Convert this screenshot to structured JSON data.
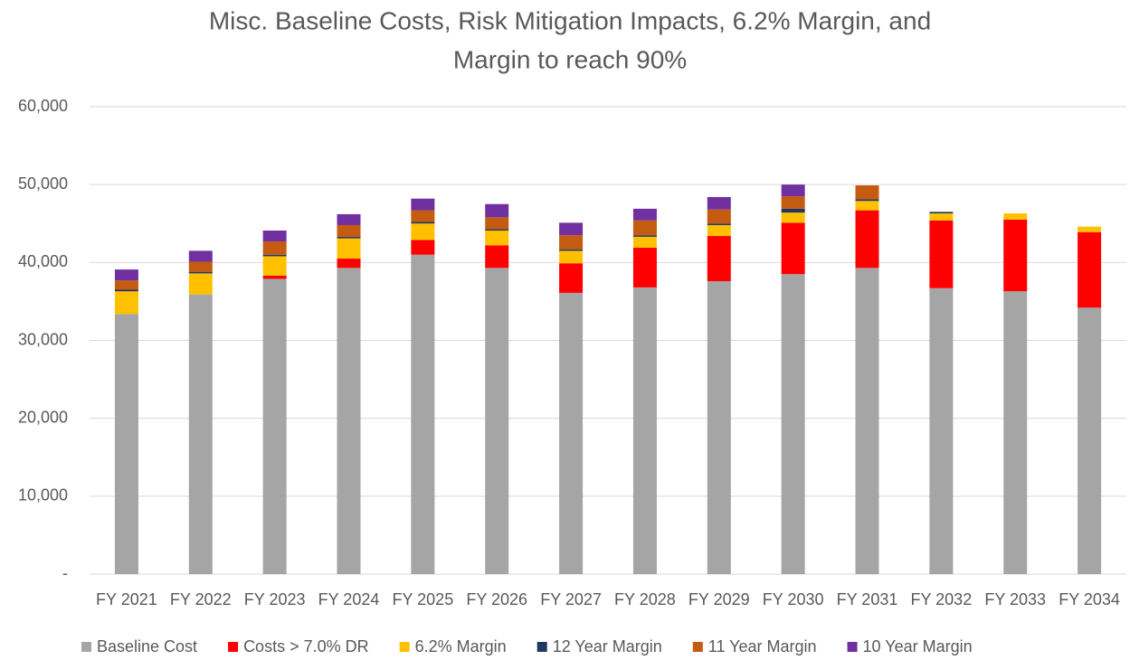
{
  "chart_data": {
    "type": "stacked_bar",
    "title": [
      "Misc. Baseline Costs, Risk Mitigation Impacts, 6.2% Margin, and",
      "Margin to reach 90%"
    ],
    "categories": [
      "FY 2021",
      "FY 2022",
      "FY 2023",
      "FY 2024",
      "FY 2025",
      "FY 2026",
      "FY 2027",
      "FY 2028",
      "FY 2029",
      "FY 2030",
      "FY 2031",
      "FY 2032",
      "FY 2033",
      "FY 2034"
    ],
    "series": [
      {
        "name": "Baseline Cost",
        "color": "#a5a5a5",
        "values": [
          33400,
          35900,
          37900,
          39300,
          41000,
          39300,
          36100,
          36800,
          37600,
          38500,
          39300,
          36700,
          36300,
          34200
        ]
      },
      {
        "name": "Costs > 7.0% DR",
        "color": "#ff0000",
        "values": [
          0,
          0,
          400,
          1200,
          1900,
          2900,
          3800,
          5100,
          5800,
          6600,
          7400,
          8700,
          9200,
          9700
        ]
      },
      {
        "name": "6.2% Margin",
        "color": "#ffc000",
        "values": [
          2900,
          2700,
          2500,
          2600,
          2100,
          1900,
          1600,
          1400,
          1400,
          1300,
          1200,
          900,
          800,
          700
        ]
      },
      {
        "name": "12 Year Margin",
        "color": "#1f3864",
        "values": [
          200,
          200,
          200,
          200,
          200,
          200,
          200,
          200,
          200,
          500,
          200,
          200,
          0,
          0
        ]
      },
      {
        "name": "11 Year Margin",
        "color": "#c55a11",
        "values": [
          1200,
          1300,
          1700,
          1500,
          1500,
          1500,
          1800,
          1900,
          1800,
          1600,
          1800,
          0,
          0,
          0
        ]
      },
      {
        "name": "10 Year Margin",
        "color": "#7030a0",
        "values": [
          1400,
          1400,
          1400,
          1400,
          1500,
          1700,
          1600,
          1500,
          1600,
          1500,
          0,
          0,
          0,
          0
        ]
      }
    ],
    "ylim": [
      0,
      60000
    ],
    "yticks": [
      {
        "value": 0,
        "label": "-"
      },
      {
        "value": 10000,
        "label": "10,000"
      },
      {
        "value": 20000,
        "label": "20,000"
      },
      {
        "value": 30000,
        "label": "30,000"
      },
      {
        "value": 40000,
        "label": "40,000"
      },
      {
        "value": 50000,
        "label": "50,000"
      },
      {
        "value": 60000,
        "label": "60,000"
      }
    ],
    "grid": true,
    "legend": "bottom"
  }
}
